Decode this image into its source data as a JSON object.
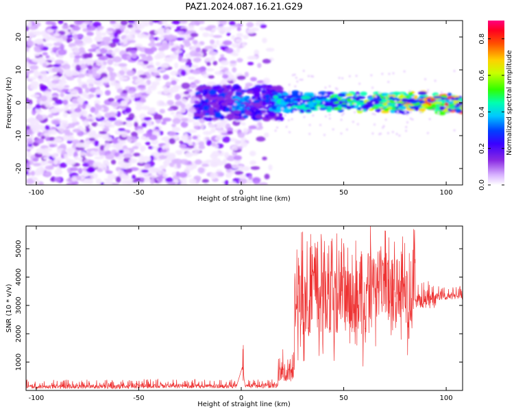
{
  "figure_title": "PAZ1.2024.087.16.21.G29",
  "colors": {
    "snr_line": "#ee3333",
    "colormap": [
      "#ffffff",
      "#d9b3ff",
      "#8a2be2",
      "#5a00ff",
      "#0000ff",
      "#00c8ff",
      "#00ff80",
      "#40ff00",
      "#ffff00",
      "#ff8000",
      "#ff0000",
      "#ff0080"
    ]
  },
  "chart_data": [
    {
      "type": "heatmap",
      "title": "",
      "xlabel": "Height of straight line (km)",
      "ylabel": "Frequency (Hz)",
      "xlim": [
        -105,
        108
      ],
      "ylim": [
        -25,
        25
      ],
      "xticks": [
        -100,
        -50,
        0,
        50,
        100
      ],
      "yticks": [
        -20,
        -10,
        0,
        10,
        20
      ],
      "noise_region": [
        -105,
        15
      ],
      "signal_band_hz": [
        -2,
        2
      ],
      "signal_start_km": 15,
      "colorbar": {
        "label": "Normalized spectral amplitude",
        "range": [
          0.0,
          0.9
        ],
        "ticks": [
          0.0,
          0.2,
          0.4,
          0.6,
          0.8
        ]
      }
    },
    {
      "type": "line",
      "title": "",
      "xlabel": "Height of straight line (km)",
      "ylabel": "SNR (10 * v/v)",
      "xlim": [
        -105,
        108
      ],
      "ylim": [
        0,
        5800
      ],
      "xticks": [
        -100,
        -50,
        0,
        50,
        100
      ],
      "yticks": [
        1000,
        2000,
        3000,
        4000,
        5000
      ],
      "series": [
        {
          "name": "",
          "segments": [
            {
              "x": [
                -105,
                -50
              ],
              "y_range": [
                60,
                380
              ]
            },
            {
              "x": [
                -50,
                -2
              ],
              "y_range": [
                80,
                400
              ]
            },
            {
              "x": [
                0.5,
                1.5
              ],
              "y_range": [
                300,
                1600
              ]
            },
            {
              "x": [
                2,
                18
              ],
              "y_range": [
                80,
                400
              ]
            },
            {
              "x": [
                18,
                26
              ],
              "y_range": [
                300,
                1500
              ]
            },
            {
              "x": [
                26,
                60
              ],
              "y_range": [
                800,
                5600
              ]
            },
            {
              "x": [
                60,
                85
              ],
              "y_range": [
                1200,
                5800
              ]
            },
            {
              "x": [
                85,
                95
              ],
              "y_range": [
                2900,
                4000
              ]
            },
            {
              "x": [
                95,
                108
              ],
              "y_range": [
                3200,
                3700
              ]
            }
          ],
          "peaks": [
            {
              "x": 1,
              "y": 1600
            },
            {
              "x": 30,
              "y": 5600
            },
            {
              "x": 36,
              "y": 5200
            },
            {
              "x": 63,
              "y": 5800
            },
            {
              "x": 72,
              "y": 5400
            },
            {
              "x": 78,
              "y": 4900
            }
          ]
        }
      ]
    }
  ]
}
